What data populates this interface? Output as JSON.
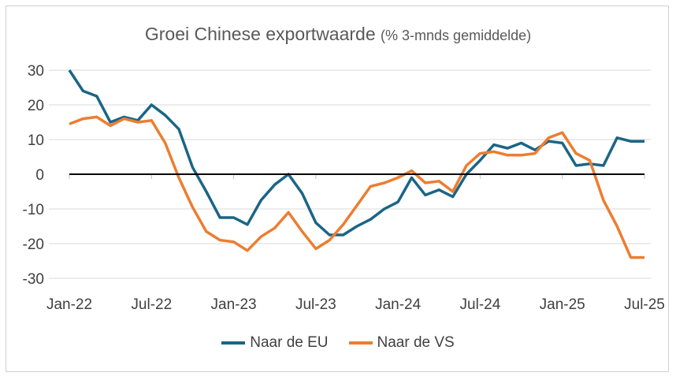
{
  "chart_data": {
    "type": "line",
    "title": "Groei Chinese exportwaarde",
    "subtitle": "(% 3-mnds gemiddelde)",
    "xlabel": "",
    "ylabel": "",
    "ylim": [
      -30,
      30
    ],
    "yticks": [
      30,
      20,
      10,
      0,
      -10,
      -20,
      -30
    ],
    "xtick_labels": [
      "Jan-22",
      "Jul-22",
      "Jan-23",
      "Jul-23",
      "Jan-24",
      "Jul-24",
      "Jan-25",
      "Jul-25"
    ],
    "x_start": "Jan-22",
    "x_end": "Jul-25",
    "frequency": "monthly",
    "grid": true,
    "legend_position": "bottom",
    "series": [
      {
        "name": "Naar de EU",
        "color": "#1b6585",
        "values": [
          30,
          24,
          22.5,
          15,
          16.5,
          15.5,
          20,
          17,
          13,
          2,
          -5,
          -12.5,
          -12.5,
          -14.5,
          -7.5,
          -3,
          0,
          -5.5,
          -14,
          -17.5,
          -17.5,
          -15,
          -13,
          -10,
          -8,
          -1,
          -6,
          -4.5,
          -6.5,
          0,
          4,
          8.5,
          7.5,
          9,
          7,
          9.5,
          9,
          2.5,
          3,
          2.5,
          10.5,
          9.5,
          9.5
        ]
      },
      {
        "name": "Naar de VS",
        "color": "#ed7d31",
        "values": [
          14.5,
          16,
          16.5,
          14,
          16,
          15,
          15.5,
          9,
          -1,
          -9.5,
          -16.5,
          -19,
          -19.5,
          -22,
          -18,
          -15.5,
          -11,
          -16.5,
          -21.5,
          -19,
          -14.5,
          -9,
          -3.5,
          -2.5,
          -1,
          1,
          -2.5,
          -2,
          -5,
          2.5,
          6,
          6.5,
          5.5,
          5.5,
          6,
          10.5,
          12,
          6,
          4,
          -7.5,
          -15,
          -24,
          -24
        ]
      }
    ]
  }
}
